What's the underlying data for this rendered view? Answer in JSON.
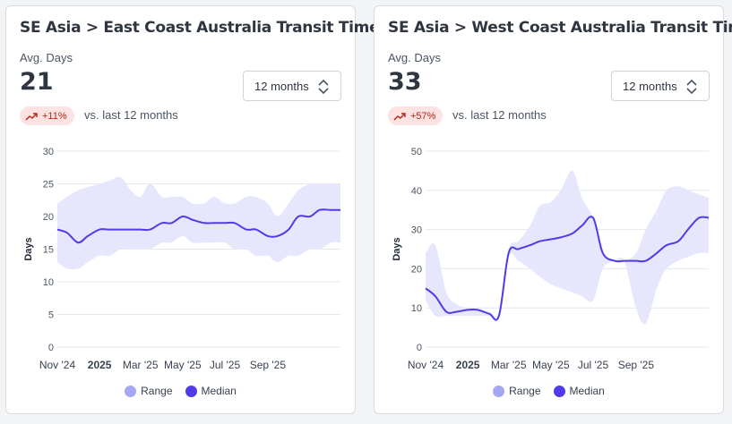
{
  "colors": {
    "range_fill": "#e6e6fd",
    "range_swatch": "#a5a7f5",
    "median_line": "#4f3ce8",
    "grid": "#e5e7eb",
    "badge_bg": "#fde2e2",
    "badge_text": "#b42318"
  },
  "cards": [
    {
      "title": "SE Asia > East Coast Australia Transit Time",
      "avg_label": "Avg. Days",
      "avg_value": "21",
      "range_select": "12 months",
      "badge": "+11%",
      "badge_icon": "trend-up-icon",
      "vs_text": "vs. last 12 months",
      "legend": {
        "range": "Range",
        "median": "Median"
      },
      "chart_data": {
        "type": "area",
        "ylabel": "Days",
        "ylim": [
          0,
          30
        ],
        "yticks": [
          0,
          5,
          10,
          15,
          20,
          25,
          30
        ],
        "xlim": [
          "2024-11-01",
          "2025-12-15"
        ],
        "xticks": [
          {
            "date": "2024-11-01",
            "label": "Nov '24",
            "bold": false
          },
          {
            "date": "2025-01-01",
            "label": "2025",
            "bold": true
          },
          {
            "date": "2025-03-01",
            "label": "Mar '25",
            "bold": false
          },
          {
            "date": "2025-05-01",
            "label": "May '25",
            "bold": false
          },
          {
            "date": "2025-07-01",
            "label": "Jul '25",
            "bold": false
          },
          {
            "date": "2025-09-01",
            "label": "Sep '25",
            "bold": false
          }
        ],
        "grid": true,
        "legend_position": "bottom",
        "series": [
          {
            "name": "Range",
            "x": [
              "2024-11-01",
              "2024-11-15",
              "2024-12-01",
              "2024-12-15",
              "2025-01-01",
              "2025-01-15",
              "2025-02-01",
              "2025-02-15",
              "2025-03-01",
              "2025-03-15",
              "2025-04-01",
              "2025-04-15",
              "2025-05-01",
              "2025-05-15",
              "2025-06-01",
              "2025-06-15",
              "2025-07-01",
              "2025-07-15",
              "2025-08-01",
              "2025-08-15",
              "2025-09-01",
              "2025-09-15",
              "2025-10-01",
              "2025-10-15",
              "2025-11-01",
              "2025-11-15",
              "2025-12-01",
              "2025-12-15"
            ],
            "low": [
              13,
              12,
              12,
              13,
              14,
              14,
              15,
              15,
              15,
              15,
              16,
              16,
              17,
              16,
              16,
              16,
              16,
              15,
              15,
              14,
              14,
              13,
              14,
              14,
              15,
              15,
              16,
              16
            ],
            "high": [
              22,
              23,
              24,
              24.5,
              25,
              25.5,
              26,
              24,
              23,
              25,
              23,
              23,
              23,
              22,
              22,
              23,
              22,
              22,
              23,
              23,
              22,
              20,
              22,
              24,
              25,
              25,
              25,
              25
            ]
          },
          {
            "name": "Median",
            "x": [
              "2024-11-01",
              "2024-11-15",
              "2024-12-01",
              "2024-12-15",
              "2025-01-01",
              "2025-01-15",
              "2025-02-01",
              "2025-02-15",
              "2025-03-01",
              "2025-03-15",
              "2025-04-01",
              "2025-04-15",
              "2025-05-01",
              "2025-05-15",
              "2025-06-01",
              "2025-06-15",
              "2025-07-01",
              "2025-07-15",
              "2025-08-01",
              "2025-08-15",
              "2025-09-01",
              "2025-09-15",
              "2025-10-01",
              "2025-10-15",
              "2025-11-01",
              "2025-11-15",
              "2025-12-01",
              "2025-12-15"
            ],
            "values": [
              18,
              17.5,
              16,
              17,
              18,
              18,
              18,
              18,
              18,
              18,
              19,
              19,
              20,
              19.5,
              19,
              19,
              19,
              19,
              18,
              18,
              17,
              17,
              18,
              20,
              20,
              21,
              21,
              21
            ]
          }
        ]
      }
    },
    {
      "title": "SE Asia > West Coast Australia Transit Times",
      "avg_label": "Avg. Days",
      "avg_value": "33",
      "range_select": "12 months",
      "badge": "+57%",
      "badge_icon": "trend-up-icon",
      "vs_text": "vs. last 12 months",
      "legend": {
        "range": "Range",
        "median": "Median"
      },
      "chart_data": {
        "type": "area",
        "ylabel": "Days",
        "ylim": [
          0,
          50
        ],
        "yticks": [
          0,
          10,
          20,
          30,
          40,
          50
        ],
        "xlim": [
          "2024-11-01",
          "2025-12-15"
        ],
        "xticks": [
          {
            "date": "2024-11-01",
            "label": "Nov '24",
            "bold": false
          },
          {
            "date": "2025-01-01",
            "label": "2025",
            "bold": true
          },
          {
            "date": "2025-03-01",
            "label": "Mar '25",
            "bold": false
          },
          {
            "date": "2025-05-01",
            "label": "May '25",
            "bold": false
          },
          {
            "date": "2025-07-01",
            "label": "Jul '25",
            "bold": false
          },
          {
            "date": "2025-09-01",
            "label": "Sep '25",
            "bold": false
          }
        ],
        "grid": true,
        "legend_position": "bottom",
        "series": [
          {
            "name": "Range",
            "x": [
              "2024-11-01",
              "2024-11-15",
              "2024-12-01",
              "2024-12-15",
              "2025-01-01",
              "2025-01-15",
              "2025-02-01",
              "2025-02-15",
              "2025-03-01",
              "2025-03-15",
              "2025-04-01",
              "2025-04-15",
              "2025-05-01",
              "2025-05-15",
              "2025-06-01",
              "2025-06-15",
              "2025-07-01",
              "2025-07-15",
              "2025-08-01",
              "2025-08-15",
              "2025-09-01",
              "2025-09-15",
              "2025-10-01",
              "2025-10-15",
              "2025-11-01",
              "2025-11-15",
              "2025-12-01",
              "2025-12-15"
            ],
            "low": [
              12,
              8,
              8,
              8,
              8,
              8,
              8,
              8,
              23,
              22,
              20,
              18,
              16,
              15,
              14,
              13,
              12,
              20,
              22,
              22,
              10,
              6,
              15,
              20,
              22,
              23,
              24,
              24
            ],
            "high": [
              24,
              26,
              14,
              11,
              10,
              10,
              9,
              9,
              25,
              27,
              31,
              36,
              37,
              40,
              45,
              38,
              33,
              24,
              22,
              22,
              24,
              30,
              35,
              40,
              41,
              40,
              39,
              38
            ]
          },
          {
            "name": "Median",
            "x": [
              "2024-11-01",
              "2024-11-15",
              "2024-12-01",
              "2024-12-15",
              "2025-01-01",
              "2025-01-15",
              "2025-02-01",
              "2025-02-15",
              "2025-03-01",
              "2025-03-15",
              "2025-04-01",
              "2025-04-15",
              "2025-05-01",
              "2025-05-15",
              "2025-06-01",
              "2025-06-15",
              "2025-07-01",
              "2025-07-15",
              "2025-08-01",
              "2025-08-15",
              "2025-09-01",
              "2025-09-15",
              "2025-10-01",
              "2025-10-15",
              "2025-11-01",
              "2025-11-15",
              "2025-12-01",
              "2025-12-15"
            ],
            "values": [
              15,
              13,
              9,
              9,
              9.5,
              9.5,
              8.5,
              8,
              24,
              25,
              26,
              27,
              27.5,
              28,
              29,
              31,
              33,
              24,
              22,
              22,
              22,
              22,
              24,
              26,
              27,
              30,
              33,
              33
            ]
          }
        ]
      }
    }
  ]
}
